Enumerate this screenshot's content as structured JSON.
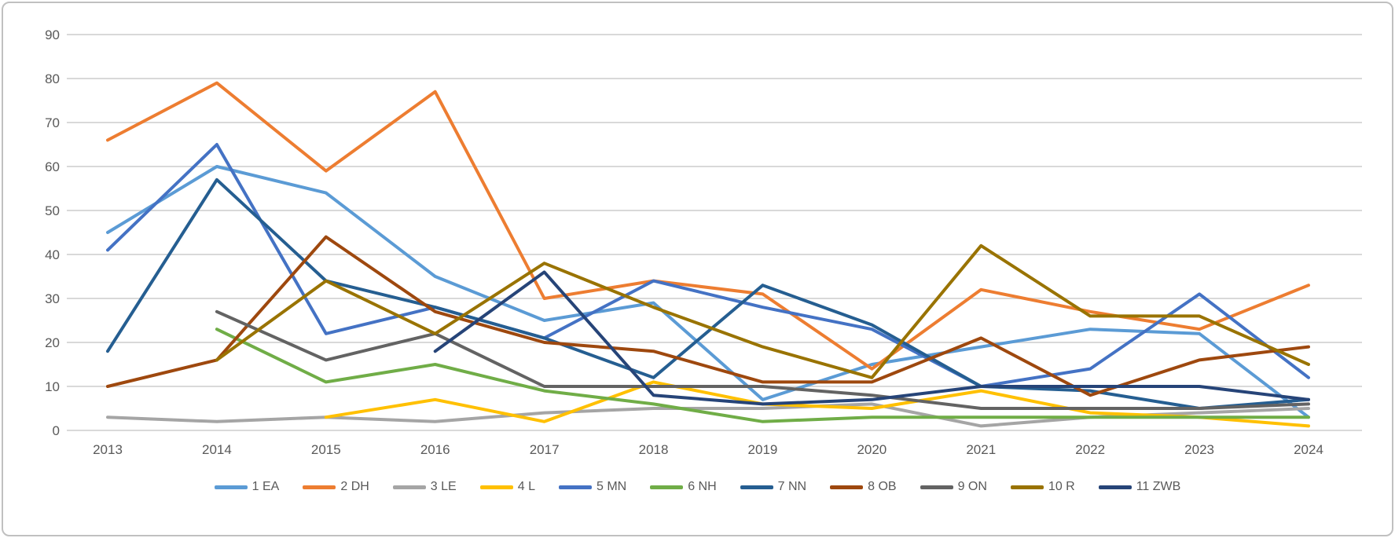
{
  "chart_data": {
    "type": "line",
    "title": "",
    "xlabel": "",
    "ylabel": "",
    "x_categories": [
      "2013",
      "2014",
      "2015",
      "2016",
      "2017",
      "2018",
      "2019",
      "2020",
      "2021",
      "2022",
      "2023",
      "2024"
    ],
    "y_axis": {
      "min": 0,
      "max": 90,
      "step": 10,
      "tick_labels": [
        "0",
        "10",
        "20",
        "30",
        "40",
        "50",
        "60",
        "70",
        "80",
        "90"
      ]
    },
    "grid": "horizontal",
    "gridline_color": "#d9d9d9",
    "axis_label_color": "#595959",
    "legend_position": "bottom",
    "series": [
      {
        "name": "1 EA",
        "color": "#5B9BD5",
        "values": [
          45,
          60,
          54,
          35,
          25,
          29,
          7,
          15,
          19,
          23,
          22,
          3
        ]
      },
      {
        "name": "2 DH",
        "color": "#ED7D31",
        "values": [
          66,
          79,
          59,
          77,
          30,
          34,
          31,
          14,
          32,
          27,
          23,
          33
        ]
      },
      {
        "name": "3 LE",
        "color": "#A5A5A5",
        "values": [
          3,
          2,
          3,
          2,
          4,
          5,
          5,
          6,
          1,
          3,
          4,
          5
        ]
      },
      {
        "name": "4 L",
        "color": "#FFC000",
        "values": [
          null,
          null,
          3,
          7,
          2,
          11,
          6,
          5,
          9,
          4,
          3,
          1
        ]
      },
      {
        "name": "5 MN",
        "color": "#4472C4",
        "values": [
          41,
          65,
          22,
          28,
          21,
          34,
          28,
          23,
          10,
          14,
          31,
          12
        ]
      },
      {
        "name": "6 NH",
        "color": "#70AD47",
        "values": [
          null,
          23,
          11,
          15,
          9,
          6,
          2,
          3,
          3,
          3,
          3,
          3
        ]
      },
      {
        "name": "7 NN",
        "color": "#255E91",
        "values": [
          18,
          57,
          34,
          28,
          21,
          12,
          33,
          24,
          10,
          9,
          5,
          7
        ]
      },
      {
        "name": "8 OB",
        "color": "#9E480E",
        "values": [
          10,
          16,
          44,
          27,
          20,
          18,
          11,
          11,
          21,
          8,
          16,
          19
        ]
      },
      {
        "name": "9 ON",
        "color": "#636363",
        "values": [
          null,
          27,
          16,
          22,
          10,
          10,
          10,
          8,
          5,
          5,
          5,
          6
        ]
      },
      {
        "name": "10 R",
        "color": "#997300",
        "values": [
          null,
          16,
          34,
          22,
          38,
          28,
          19,
          12,
          42,
          26,
          26,
          15
        ]
      },
      {
        "name": "11 ZWB",
        "color": "#264478",
        "values": [
          null,
          null,
          null,
          18,
          36,
          8,
          6,
          7,
          10,
          10,
          10,
          7
        ]
      }
    ]
  }
}
